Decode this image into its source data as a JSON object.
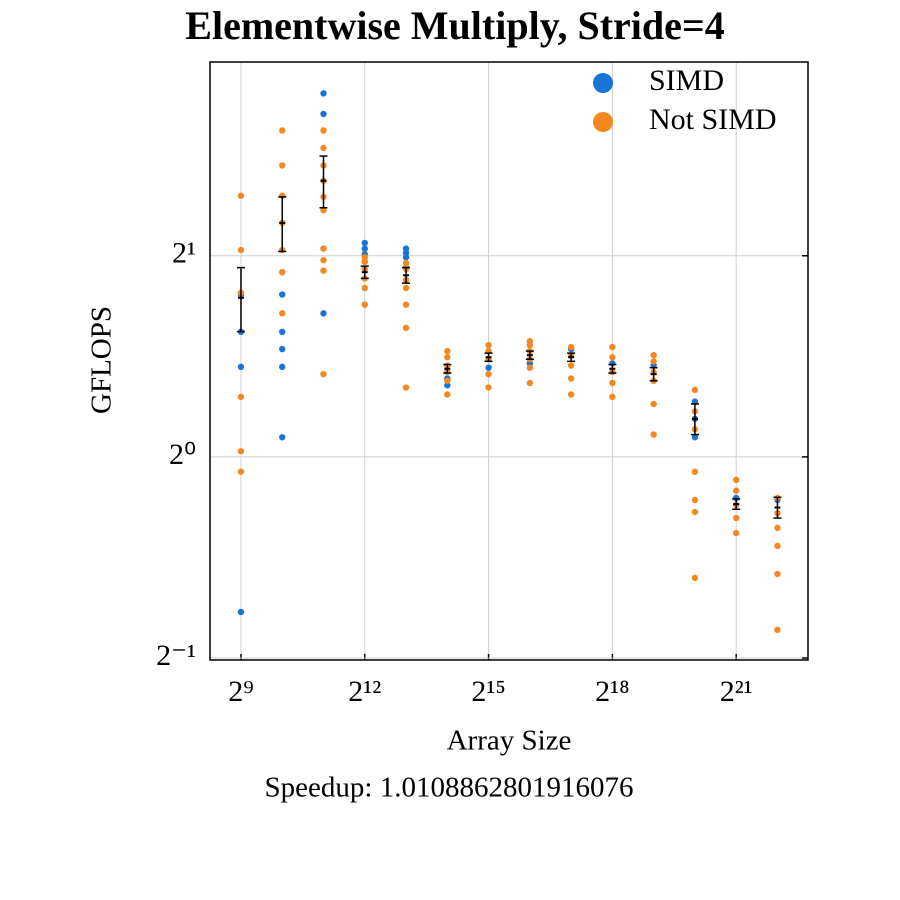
{
  "chart_data": {
    "type": "scatter",
    "title": "Elementwise Multiply, Stride=4",
    "x_label": "Array Size",
    "y_label": "GFLOPS",
    "annotation": "Speedup: 1.0108862801916076",
    "xscale": "log2",
    "yscale": "log2",
    "grid": true,
    "legend": "upper right",
    "xlim": [
      304.4,
      7005000
    ],
    "ylim": [
      0.4966,
      3.9
    ],
    "xticks": [
      {
        "value": 512,
        "label": "2⁹"
      },
      {
        "value": 4096,
        "label": "2¹²"
      },
      {
        "value": 32768,
        "label": "2¹⁵"
      },
      {
        "value": 262144,
        "label": "2¹⁸"
      },
      {
        "value": 2097152,
        "label": "2²¹"
      }
    ],
    "yticks": [
      {
        "value": 0.5,
        "label": "2⁻¹"
      },
      {
        "value": 1,
        "label": "2⁰"
      },
      {
        "value": 2,
        "label": "2¹"
      }
    ],
    "series": [
      {
        "name": "SIMD",
        "color": "#1874d6",
        "x": [
          512,
          512,
          512,
          512,
          1024,
          1024,
          1024,
          1024,
          1024,
          2048,
          2048,
          2048,
          4096,
          4096,
          4096,
          4096,
          8192,
          8192,
          8192,
          8192,
          16384,
          16384,
          32768,
          65536,
          131072,
          262144,
          524288,
          1048576,
          1048576,
          1048576,
          2097152,
          4194304
        ],
        "values": [
          1.539,
          1.364,
          0.586,
          1.748,
          1.75,
          1.539,
          1.45,
          1.364,
          1.07,
          3.5,
          3.26,
          1.64,
          2.09,
          2.05,
          2.01,
          1.96,
          2.05,
          2.02,
          1.99,
          1.92,
          1.28,
          1.31,
          1.36,
          1.38,
          1.45,
          1.38,
          1.37,
          1.21,
          1.14,
          1.07,
          0.868,
          0.862
        ]
      },
      {
        "name": "Not SIMD",
        "color": "#f5871f",
        "x": [
          512,
          512,
          512,
          512,
          512,
          512,
          1024,
          1024,
          1024,
          1024,
          1024,
          1024,
          1024,
          2048,
          2048,
          2048,
          2048,
          2048,
          2048,
          2048,
          2048,
          2048,
          2048,
          4096,
          4096,
          4096,
          4096,
          4096,
          4096,
          8192,
          8192,
          8192,
          8192,
          8192,
          8192,
          8192,
          16384,
          16384,
          16384,
          16384,
          16384,
          16384,
          32768,
          32768,
          32768,
          32768,
          32768,
          65536,
          65536,
          65536,
          65536,
          65536,
          65536,
          131072,
          131072,
          131072,
          131072,
          131072,
          262144,
          262144,
          262144,
          262144,
          262144,
          524288,
          524288,
          524288,
          524288,
          524288,
          524288,
          1048576,
          1048576,
          1048576,
          1048576,
          1048576,
          1048576,
          1048576,
          2097152,
          2097152,
          2097152,
          2097152,
          2097152,
          4194304,
          4194304,
          4194304,
          4194304,
          4194304,
          4194304
        ],
        "values": [
          2.46,
          2.04,
          1.76,
          1.23,
          1.02,
          0.95,
          3.08,
          2.73,
          2.46,
          2.24,
          2.04,
          1.89,
          1.64,
          3.08,
          2.9,
          2.73,
          2.59,
          2.45,
          2.34,
          2.05,
          1.97,
          1.9,
          1.33,
          1.99,
          1.96,
          1.91,
          1.85,
          1.79,
          1.69,
          1.95,
          1.91,
          1.84,
          1.79,
          1.69,
          1.56,
          1.27,
          1.44,
          1.41,
          1.37,
          1.34,
          1.3,
          1.24,
          1.47,
          1.44,
          1.4,
          1.33,
          1.27,
          1.49,
          1.47,
          1.44,
          1.4,
          1.36,
          1.29,
          1.46,
          1.42,
          1.37,
          1.31,
          1.24,
          1.46,
          1.41,
          1.34,
          1.29,
          1.23,
          1.42,
          1.39,
          1.34,
          1.3,
          1.2,
          1.08,
          1.26,
          1.17,
          1.1,
          0.95,
          0.862,
          0.827,
          0.659,
          0.924,
          0.89,
          0.847,
          0.81,
          0.769,
          0.868,
          0.824,
          0.783,
          0.736,
          0.668,
          0.551
        ]
      }
    ],
    "error_bars": {
      "color": "#000000",
      "x": [
        512,
        1024,
        2048,
        4096,
        8192,
        16384,
        32768,
        65536,
        131072,
        262144,
        524288,
        1048576,
        2097152,
        4194304
      ],
      "values": [
        1.73,
        2.24,
        2.59,
        1.89,
        1.87,
        1.355,
        1.41,
        1.42,
        1.41,
        1.355,
        1.33,
        1.14,
        0.85,
        0.84
      ],
      "errors": [
        0.19,
        0.21,
        0.23,
        0.04,
        0.05,
        0.02,
        0.02,
        0.02,
        0.02,
        0.02,
        0.03,
        0.06,
        0.015,
        0.03
      ]
    }
  }
}
